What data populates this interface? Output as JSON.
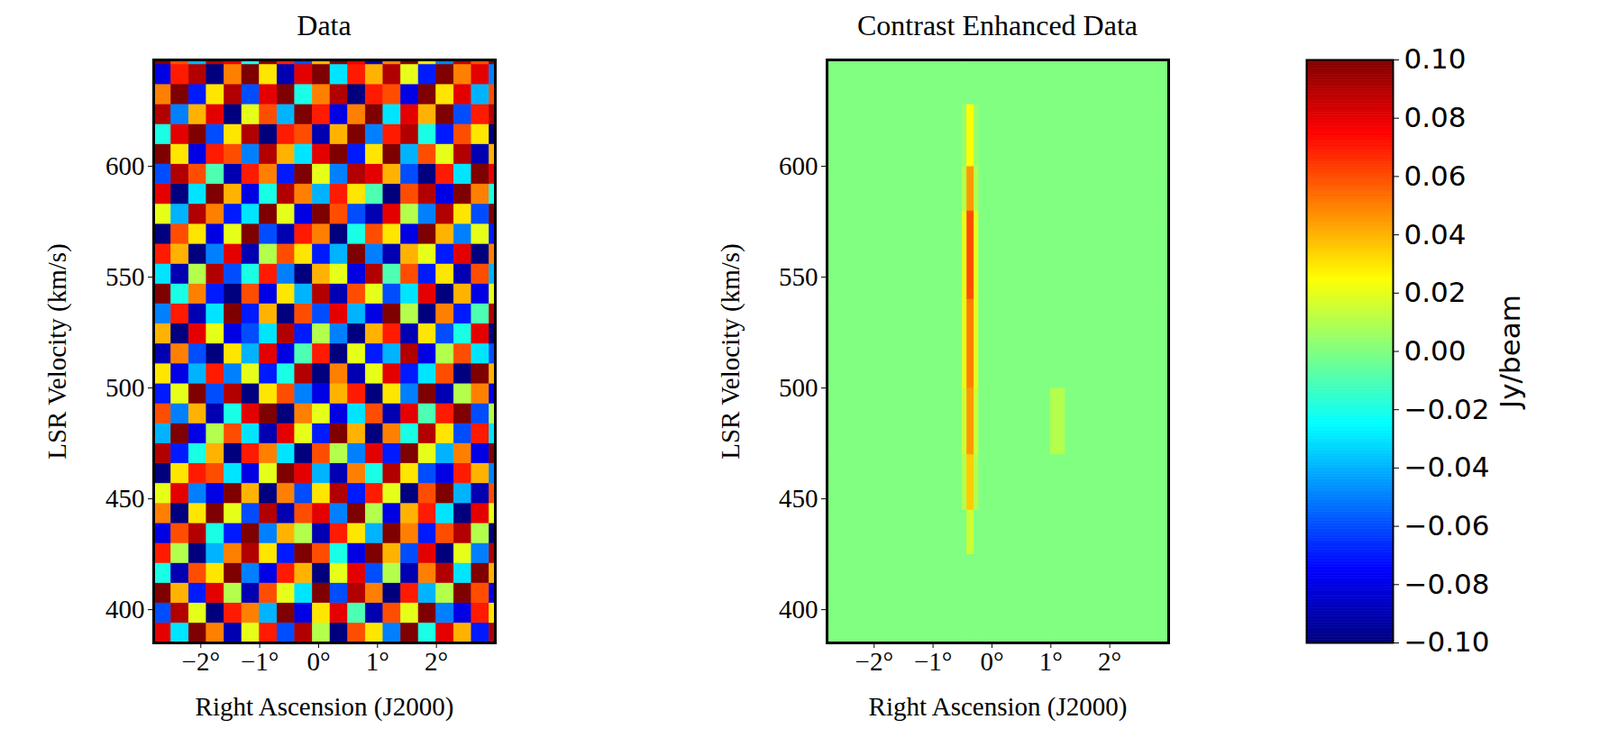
{
  "chart_data": [
    {
      "type": "heatmap",
      "title": "Data",
      "x_label": "Right Ascension (J2000)",
      "y_label": "LSR Velocity (km/s)",
      "xlim": [
        -2.8,
        3.0
      ],
      "xticks": [
        {
          "value": -2,
          "label": "−2°"
        },
        {
          "value": -1,
          "label": "−1°"
        },
        {
          "value": 0,
          "label": "0°"
        },
        {
          "value": 1,
          "label": "1°"
        },
        {
          "value": 2,
          "label": "2°"
        }
      ],
      "ylim": [
        385,
        648
      ],
      "yticks": [
        400,
        450,
        500,
        550,
        600
      ],
      "x_edges": [
        -2.8,
        -2.5,
        -2.2,
        -1.9,
        -1.6,
        -1.3,
        -1.0,
        -0.7,
        -0.4,
        -0.1,
        0.2,
        0.5,
        0.8,
        1.1,
        1.4,
        1.7,
        2.0,
        2.3,
        2.6,
        2.9,
        3.2
      ],
      "y_edges": [
        385,
        394,
        403,
        412,
        421,
        430,
        439,
        448,
        457,
        466,
        475,
        484,
        493,
        502,
        511,
        520,
        529,
        538,
        547,
        556,
        565,
        574,
        583,
        592,
        601,
        610,
        619,
        628,
        637,
        646,
        655
      ],
      "values": [
        [
          0.08,
          -0.03,
          0.1,
          0.05,
          -0.09,
          0.02,
          0.07,
          -0.06,
          0.09,
          0.01,
          -0.1,
          0.06,
          0.03,
          -0.05,
          0.1,
          -0.02,
          0.08,
          0.04,
          -0.07,
          0.09
        ],
        [
          -0.06,
          0.09,
          0.02,
          -0.1,
          0.07,
          0.05,
          -0.04,
          0.1,
          -0.08,
          0.03,
          0.08,
          -0.01,
          -0.09,
          0.06,
          0.02,
          0.1,
          -0.05,
          -0.08,
          0.07,
          0.03
        ],
        [
          0.1,
          0.04,
          -0.07,
          0.08,
          0.01,
          -0.09,
          0.06,
          0.02,
          -0.03,
          0.1,
          -0.06,
          0.09,
          0.05,
          -0.1,
          0.07,
          -0.04,
          0.01,
          0.1,
          0.06,
          -0.08
        ],
        [
          -0.02,
          -0.09,
          0.06,
          0.03,
          0.1,
          -0.05,
          -0.08,
          0.07,
          0.04,
          -0.1,
          0.02,
          0.08,
          -0.06,
          0.01,
          -0.09,
          0.05,
          0.09,
          -0.03,
          0.1,
          0.04
        ],
        [
          0.07,
          0.01,
          -0.1,
          -0.04,
          0.05,
          0.09,
          0.03,
          -0.07,
          0.1,
          0.06,
          -0.02,
          -0.08,
          0.1,
          0.04,
          -0.06,
          0.08,
          -0.1,
          0.02,
          -0.05,
          0.09
        ],
        [
          -0.08,
          0.06,
          0.09,
          -0.02,
          -0.07,
          0.1,
          -0.05,
          0.04,
          0.01,
          -0.09,
          0.07,
          0.03,
          -0.04,
          0.1,
          0.05,
          -0.07,
          0.06,
          0.09,
          0.01,
          -0.1
        ],
        [
          0.05,
          -0.1,
          0.03,
          0.1,
          0.02,
          -0.06,
          0.09,
          -0.09,
          0.06,
          0.08,
          -0.05,
          0.1,
          0.01,
          -0.08,
          0.04,
          0.07,
          -0.03,
          -0.1,
          0.08,
          0.02
        ],
        [
          0.02,
          0.08,
          -0.05,
          -0.08,
          0.1,
          0.04,
          -0.1,
          0.05,
          -0.06,
          0.03,
          0.09,
          -0.07,
          0.07,
          0.02,
          -0.1,
          0.06,
          0.1,
          -0.04,
          -0.09,
          0.06
        ],
        [
          -0.1,
          0.03,
          0.07,
          0.06,
          -0.03,
          -0.08,
          0.02,
          0.1,
          0.08,
          -0.04,
          -0.09,
          0.05,
          -0.02,
          0.09,
          0.03,
          -0.06,
          -0.08,
          0.07,
          0.04,
          -0.05
        ],
        [
          0.09,
          -0.07,
          -0.02,
          0.04,
          -0.1,
          0.07,
          0.05,
          -0.03,
          -0.1,
          0.06,
          0.01,
          -0.05,
          0.08,
          -0.07,
          0.1,
          0.02,
          -0.04,
          0.05,
          -0.08,
          0.1
        ],
        [
          -0.04,
          0.1,
          -0.08,
          0.01,
          0.06,
          -0.03,
          -0.09,
          0.08,
          0.02,
          -0.07,
          0.1,
          0.04,
          -0.1,
          0.05,
          -0.02,
          0.09,
          0.03,
          -0.06,
          0.07,
          -0.03
        ],
        [
          0.06,
          -0.05,
          0.04,
          -0.09,
          -0.02,
          0.08,
          0.1,
          -0.1,
          0.05,
          0.02,
          -0.08,
          -0.03,
          0.06,
          -0.09,
          0.08,
          -0.01,
          0.07,
          0.1,
          -0.06,
          0.01
        ],
        [
          -0.07,
          0.02,
          0.1,
          -0.06,
          0.09,
          -0.1,
          0.03,
          0.06,
          -0.05,
          -0.08,
          0.04,
          0.07,
          -0.1,
          0.03,
          -0.05,
          0.1,
          -0.09,
          0.01,
          0.05,
          -0.08
        ],
        [
          0.03,
          -0.08,
          -0.04,
          0.07,
          -0.05,
          0.02,
          -0.07,
          -0.02,
          0.09,
          -0.1,
          0.05,
          -0.09,
          0.02,
          0.08,
          -0.07,
          -0.03,
          0.06,
          -0.1,
          0.1,
          0.04
        ],
        [
          -0.09,
          0.05,
          -0.06,
          -0.1,
          0.03,
          -0.04,
          0.08,
          -0.08,
          -0.01,
          0.07,
          -0.1,
          0.02,
          -0.07,
          -0.04,
          0.09,
          -0.08,
          0.01,
          0.06,
          -0.03,
          -0.06
        ],
        [
          0.04,
          -0.1,
          0.08,
          0.02,
          -0.08,
          -0.06,
          -0.03,
          0.09,
          -0.07,
          0.01,
          -0.05,
          -0.1,
          0.04,
          0.07,
          -0.09,
          0.03,
          -0.06,
          -0.02,
          0.08,
          -0.1
        ],
        [
          -0.05,
          0.07,
          -0.09,
          -0.03,
          0.1,
          -0.07,
          0.04,
          -0.1,
          0.06,
          -0.06,
          0.08,
          -0.04,
          -0.08,
          0.1,
          0.01,
          -0.1,
          0.05,
          -0.07,
          -0.01,
          0.09
        ],
        [
          0.1,
          -0.02,
          0.05,
          -0.07,
          -0.1,
          0.06,
          -0.08,
          0.03,
          -0.04,
          0.09,
          -0.09,
          0.06,
          0.02,
          -0.06,
          -0.03,
          0.08,
          -0.1,
          0.04,
          -0.08,
          0.02
        ],
        [
          -0.03,
          -0.09,
          0.01,
          0.09,
          -0.06,
          -0.02,
          0.07,
          -0.05,
          -0.1,
          0.04,
          0.02,
          -0.08,
          0.09,
          -0.01,
          0.06,
          -0.07,
          0.03,
          -0.09,
          0.06,
          -0.04
        ],
        [
          0.07,
          0.04,
          -0.1,
          -0.05,
          0.08,
          -0.09,
          0.01,
          0.06,
          0.03,
          -0.07,
          -0.04,
          0.1,
          -0.05,
          -0.09,
          0.04,
          0.02,
          -0.07,
          0.08,
          -0.1,
          0.05
        ],
        [
          -0.1,
          0.06,
          0.03,
          -0.08,
          0.02,
          0.1,
          -0.06,
          -0.09,
          0.07,
          0.05,
          -0.1,
          -0.02,
          0.06,
          0.03,
          -0.08,
          0.1,
          0.04,
          -0.05,
          0.02,
          -0.07
        ],
        [
          0.02,
          -0.04,
          0.09,
          0.05,
          -0.07,
          -0.03,
          0.1,
          0.02,
          -0.08,
          0.1,
          0.06,
          -0.06,
          -0.09,
          0.08,
          0.01,
          -0.05,
          0.09,
          0.03,
          -0.06,
          0.1
        ],
        [
          0.08,
          -0.1,
          -0.03,
          0.1,
          0.04,
          -0.08,
          -0.02,
          0.09,
          0.05,
          -0.04,
          0.07,
          0.03,
          -0.01,
          -0.1,
          0.06,
          0.09,
          -0.08,
          0.1,
          0.05,
          -0.02
        ],
        [
          -0.06,
          0.09,
          0.06,
          -0.01,
          -0.09,
          0.07,
          0.05,
          -0.07,
          0.1,
          0.02,
          -0.05,
          0.09,
          0.08,
          0.04,
          -0.06,
          -0.1,
          0.07,
          -0.03,
          0.1,
          0.08
        ],
        [
          0.1,
          0.03,
          -0.08,
          0.07,
          0.06,
          -0.05,
          0.09,
          0.04,
          -0.03,
          0.08,
          0.1,
          -0.07,
          0.03,
          0.1,
          -0.04,
          0.06,
          0.02,
          0.09,
          -0.09,
          0.04
        ],
        [
          -0.02,
          0.08,
          0.1,
          -0.06,
          0.03,
          0.09,
          -0.1,
          0.07,
          0.06,
          -0.09,
          0.04,
          0.1,
          -0.05,
          0.07,
          0.09,
          -0.02,
          -0.07,
          0.06,
          0.03,
          -0.1
        ],
        [
          0.09,
          -0.05,
          0.04,
          0.08,
          -0.1,
          0.02,
          0.06,
          -0.04,
          0.1,
          0.07,
          -0.08,
          0.05,
          0.1,
          -0.03,
          0.08,
          0.04,
          0.1,
          -0.06,
          0.07,
          0.09
        ],
        [
          0.05,
          0.1,
          -0.07,
          0.03,
          0.09,
          -0.06,
          0.08,
          0.1,
          -0.02,
          0.05,
          0.09,
          -0.1,
          0.07,
          0.06,
          -0.08,
          0.1,
          0.03,
          0.08,
          -0.04,
          0.06
        ],
        [
          -0.08,
          0.07,
          0.09,
          -0.1,
          0.05,
          0.1,
          0.03,
          -0.09,
          0.08,
          0.1,
          -0.03,
          0.07,
          0.04,
          0.09,
          0.02,
          -0.07,
          0.1,
          0.05,
          0.08,
          -0.05
        ],
        [
          0.1,
          0.06,
          -0.04,
          0.09,
          0.08,
          -0.02,
          0.1,
          0.07,
          -0.06,
          0.04,
          0.1,
          0.08,
          -0.09,
          0.05,
          0.1,
          0.03,
          -0.05,
          0.09,
          0.06,
          0.1
        ]
      ]
    },
    {
      "type": "heatmap",
      "title": "Contrast Enhanced Data",
      "x_label": "Right Ascension (J2000)",
      "y_label": "LSR Velocity (km/s)",
      "xlim": [
        -2.8,
        3.0
      ],
      "xticks": [
        {
          "value": -2,
          "label": "−2°"
        },
        {
          "value": -1,
          "label": "−1°"
        },
        {
          "value": 0,
          "label": "0°"
        },
        {
          "value": 1,
          "label": "1°"
        },
        {
          "value": 2,
          "label": "2°"
        }
      ],
      "ylim": [
        385,
        648
      ],
      "yticks": [
        400,
        450,
        500,
        550,
        600
      ],
      "x_edges": [
        -2.8,
        -0.5,
        -0.42,
        -0.3,
        -0.22,
        1.0,
        1.25,
        3.0
      ],
      "y_edges": [
        385,
        425,
        445,
        470,
        500,
        540,
        580,
        600,
        628,
        648
      ],
      "values": [
        [
          0,
          0,
          0,
          0,
          0,
          0,
          0
        ],
        [
          0,
          0,
          0.015,
          0,
          0,
          0,
          0
        ],
        [
          0,
          0.01,
          0.035,
          0.01,
          0,
          0,
          0
        ],
        [
          0,
          0.015,
          0.045,
          0.015,
          0,
          0.01,
          0
        ],
        [
          0,
          0.02,
          0.05,
          0.02,
          0,
          0,
          0
        ],
        [
          0,
          0.02,
          0.06,
          0.02,
          0,
          0,
          0
        ],
        [
          0,
          0.01,
          0.045,
          0.01,
          0,
          0,
          0
        ],
        [
          0,
          0.005,
          0.025,
          0.005,
          0,
          0,
          0
        ],
        [
          0,
          0,
          0,
          0,
          0,
          0,
          0
        ]
      ]
    },
    {
      "type": "colorbar",
      "label": "Jy/beam",
      "color": "jet",
      "range": [
        -0.1,
        0.1
      ],
      "ticks": [
        {
          "value": -0.1,
          "label": "−0.10"
        },
        {
          "value": -0.08,
          "label": "−0.08"
        },
        {
          "value": -0.06,
          "label": "−0.06"
        },
        {
          "value": -0.04,
          "label": "−0.04"
        },
        {
          "value": -0.02,
          "label": "−0.02"
        },
        {
          "value": 0,
          "label": "0.00"
        },
        {
          "value": 0.02,
          "label": "0.02"
        },
        {
          "value": 0.04,
          "label": "0.04"
        },
        {
          "value": 0.06,
          "label": "0.06"
        },
        {
          "value": 0.08,
          "label": "0.08"
        },
        {
          "value": 0.1,
          "label": "0.10"
        }
      ]
    }
  ]
}
